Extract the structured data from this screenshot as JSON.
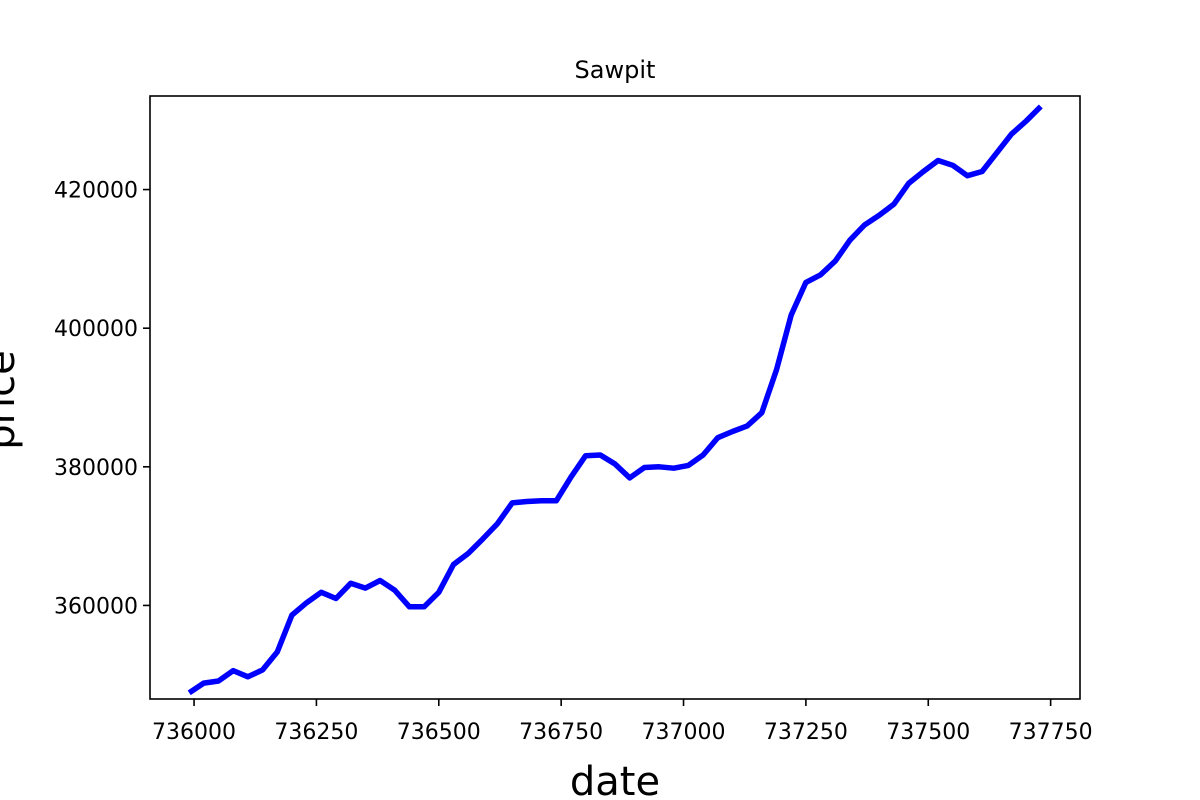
{
  "chart_data": {
    "type": "line",
    "title": "Sawpit",
    "xlabel": "date",
    "ylabel": "price",
    "xlim": [
      735910,
      737810
    ],
    "ylim": [
      346500,
      433500
    ],
    "grid": false,
    "legend": "none",
    "x_ticks": [
      736000,
      736250,
      736500,
      736750,
      737000,
      737250,
      737500,
      737750
    ],
    "y_ticks": [
      360000,
      380000,
      400000,
      420000
    ],
    "series": [
      {
        "color": "#0000ff",
        "x": [
          735990,
          736020,
          736050,
          736080,
          736110,
          736140,
          736170,
          736200,
          736230,
          736260,
          736290,
          736320,
          736350,
          736380,
          736410,
          736440,
          736470,
          736500,
          736530,
          736560,
          736590,
          736620,
          736650,
          736680,
          736710,
          736740,
          736770,
          736800,
          736830,
          736860,
          736890,
          736920,
          736950,
          736980,
          737010,
          737040,
          737070,
          737100,
          737130,
          737160,
          737190,
          737220,
          737250,
          737280,
          737310,
          737340,
          737370,
          737400,
          737430,
          737460,
          737490,
          737520,
          737550,
          737580,
          737610,
          737640,
          737670,
          737700,
          737730
        ],
        "y": [
          347400,
          348800,
          349100,
          350600,
          349700,
          350700,
          353300,
          358600,
          360400,
          361900,
          361000,
          363200,
          362500,
          363600,
          362200,
          359800,
          359800,
          361900,
          365900,
          367500,
          369600,
          371800,
          374800,
          375000,
          375100,
          375100,
          378500,
          381600,
          381700,
          380400,
          378400,
          379900,
          380000,
          379800,
          380200,
          381700,
          384200,
          385100,
          385900,
          387800,
          394000,
          401900,
          406600,
          407700,
          409700,
          412700,
          414900,
          416300,
          417900,
          420900,
          422600,
          424200,
          423500,
          422000,
          422600,
          425300,
          428000,
          429900,
          432000
        ]
      }
    ]
  }
}
